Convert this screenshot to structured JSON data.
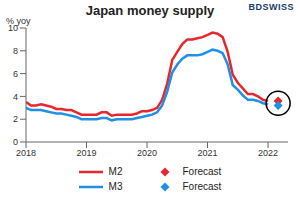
{
  "chart_data": {
    "type": "line",
    "title": "Japan money supply",
    "y_label": "% yoy",
    "annotation": "BDSWISS",
    "x": [
      2018,
      2018.083,
      2018.167,
      2018.25,
      2018.333,
      2018.417,
      2018.5,
      2018.583,
      2018.667,
      2018.75,
      2018.833,
      2018.917,
      2019,
      2019.083,
      2019.167,
      2019.25,
      2019.333,
      2019.417,
      2019.5,
      2019.583,
      2019.667,
      2019.75,
      2019.833,
      2019.917,
      2020,
      2020.083,
      2020.167,
      2020.25,
      2020.333,
      2020.417,
      2020.5,
      2020.583,
      2020.667,
      2020.75,
      2020.833,
      2020.917,
      2021,
      2021.083,
      2021.167,
      2021.25,
      2021.333,
      2021.417,
      2021.5,
      2021.583,
      2021.667,
      2021.75,
      2021.833,
      2021.917,
      2022
    ],
    "series": [
      {
        "name": "M2",
        "color": "#e8262d",
        "type": "line",
        "values": [
          3.5,
          3.2,
          3.2,
          3.3,
          3.2,
          3.1,
          2.9,
          2.9,
          2.8,
          2.8,
          2.6,
          2.4,
          2.4,
          2.4,
          2.4,
          2.6,
          2.6,
          2.3,
          2.4,
          2.4,
          2.4,
          2.4,
          2.5,
          2.7,
          2.7,
          2.8,
          3.0,
          3.7,
          5.1,
          7.2,
          7.9,
          8.6,
          9.0,
          9.0,
          9.1,
          9.2,
          9.4,
          9.6,
          9.5,
          9.2,
          7.9,
          5.9,
          5.2,
          4.7,
          4.2,
          4.2,
          4.0,
          3.7,
          3.6
        ]
      },
      {
        "name": "M3",
        "color": "#1f8fe8",
        "type": "line",
        "values": [
          3.0,
          2.8,
          2.8,
          2.8,
          2.7,
          2.6,
          2.5,
          2.5,
          2.4,
          2.3,
          2.2,
          2.0,
          2.0,
          2.0,
          2.0,
          2.1,
          2.1,
          1.9,
          2.0,
          2.0,
          2.0,
          2.0,
          2.1,
          2.2,
          2.3,
          2.4,
          2.6,
          3.2,
          4.4,
          6.1,
          6.8,
          7.3,
          7.6,
          7.6,
          7.6,
          7.7,
          7.9,
          8.1,
          8.0,
          7.8,
          6.8,
          5.0,
          4.6,
          4.1,
          3.7,
          3.7,
          3.6,
          3.4,
          3.3
        ]
      },
      {
        "name": "Forecast",
        "color": "#e8262d",
        "type": "scatter",
        "marker": "diamond",
        "x": [
          2022.167
        ],
        "values": [
          3.6
        ]
      },
      {
        "name": "Forecast",
        "color": "#1f8fe8",
        "type": "scatter",
        "marker": "diamond",
        "x": [
          2022.167
        ],
        "values": [
          3.2
        ]
      }
    ],
    "xlim": [
      2018,
      2022.33
    ],
    "xticks": [
      2018,
      2019,
      2020,
      2021,
      2022
    ],
    "ylim": [
      0,
      10
    ],
    "yticks": [
      0,
      2,
      4,
      6,
      8,
      10
    ],
    "grid": false,
    "legend": "bottom"
  }
}
